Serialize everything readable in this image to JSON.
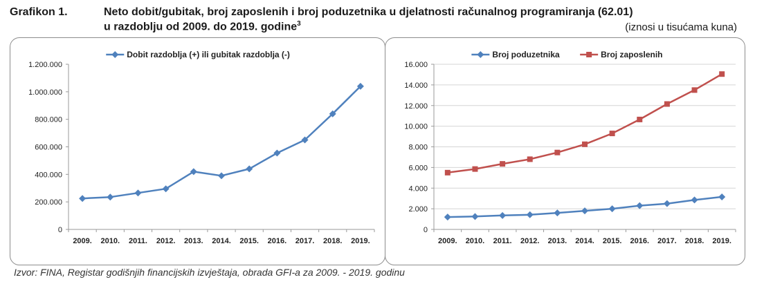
{
  "header": {
    "figure_label": "Grafikon 1.",
    "title_line1": "Neto dobit/gubitak, broj zaposlenih i broj poduzetnika u djelatnosti računalnog programiranja (62.01)",
    "title_line2": "u razdoblju od 2009. do 2019. godine",
    "footnote_mark": "3",
    "units_note": "(iznosi u tisućama kuna)"
  },
  "source": "Izvor: FINA, Registar godišnjih financijskih izvještaja, obrada GFI-a za 2009. - 2019. godinu",
  "colors": {
    "blue": "#4f81bd",
    "red": "#c0504d",
    "axis": "#9a9a9a",
    "grid": "#d4d4d4"
  },
  "chart_data": [
    {
      "type": "line",
      "categories": [
        "2009.",
        "2010.",
        "2011.",
        "2012.",
        "2013.",
        "2014.",
        "2015.",
        "2016.",
        "2017.",
        "2018.",
        "2019."
      ],
      "series": [
        {
          "name": "Dobit razdoblja (+) ili gubitak razdoblja (-)",
          "color": "#4f81bd",
          "marker": "diamond",
          "values": [
            225000,
            235000,
            265000,
            295000,
            420000,
            390000,
            440000,
            555000,
            650000,
            840000,
            1040000
          ]
        }
      ],
      "ylim": [
        0,
        1200000
      ],
      "yticks": [
        0,
        200000,
        400000,
        600000,
        800000,
        1000000,
        1200000
      ],
      "ytick_labels": [
        "0",
        "200.000",
        "400.000",
        "600.000",
        "800.000",
        "1.000.000",
        "1.200.000"
      ],
      "grid": false,
      "legend": "top"
    },
    {
      "type": "line",
      "categories": [
        "2009.",
        "2010.",
        "2011.",
        "2012.",
        "2013.",
        "2014.",
        "2015.",
        "2016.",
        "2017.",
        "2018.",
        "2019."
      ],
      "series": [
        {
          "name": "Broj poduzetnika",
          "color": "#4f81bd",
          "marker": "diamond",
          "values": [
            1200,
            1250,
            1350,
            1420,
            1600,
            1800,
            2000,
            2300,
            2500,
            2850,
            3150
          ]
        },
        {
          "name": "Broj zaposlenih",
          "color": "#c0504d",
          "marker": "square",
          "values": [
            5500,
            5850,
            6350,
            6800,
            7450,
            8250,
            9300,
            10650,
            12150,
            13500,
            15050
          ]
        }
      ],
      "ylim": [
        0,
        16000
      ],
      "yticks": [
        0,
        2000,
        4000,
        6000,
        8000,
        10000,
        12000,
        14000,
        16000
      ],
      "ytick_labels": [
        "0",
        "2.000",
        "4.000",
        "6.000",
        "8.000",
        "10.000",
        "12.000",
        "14.000",
        "16.000"
      ],
      "grid": true,
      "legend": "top"
    }
  ]
}
